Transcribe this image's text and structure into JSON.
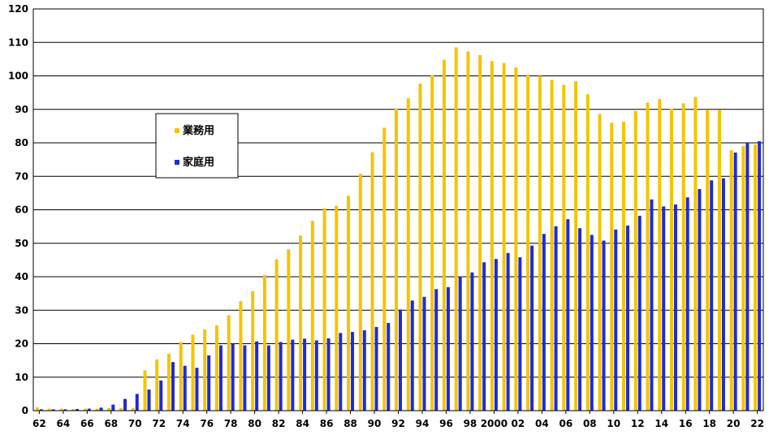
{
  "chart_data": {
    "type": "bar",
    "title": "",
    "xlabel": "",
    "ylabel": "",
    "ylim": [
      0,
      120
    ],
    "yticks": [
      0,
      10,
      20,
      30,
      40,
      50,
      60,
      70,
      80,
      90,
      100,
      110,
      120
    ],
    "grid": true,
    "legend_position": "left",
    "categories": [
      "62",
      "63",
      "64",
      "65",
      "66",
      "67",
      "68",
      "69",
      "70",
      "71",
      "72",
      "73",
      "74",
      "75",
      "76",
      "77",
      "78",
      "79",
      "80",
      "81",
      "82",
      "83",
      "84",
      "85",
      "86",
      "87",
      "88",
      "89",
      "90",
      "91",
      "92",
      "93",
      "94",
      "95",
      "96",
      "97",
      "98",
      "99",
      "2000",
      "01",
      "02",
      "03",
      "04",
      "05",
      "06",
      "07",
      "08",
      "09",
      "10",
      "11",
      "12",
      "13",
      "14",
      "15",
      "16",
      "17",
      "18",
      "19",
      "20",
      "21",
      "22"
    ],
    "xtick_labels": [
      "62",
      "64",
      "66",
      "68",
      "70",
      "72",
      "74",
      "76",
      "78",
      "80",
      "82",
      "84",
      "86",
      "88",
      "90",
      "92",
      "94",
      "96",
      "98",
      "2000",
      "02",
      "04",
      "06",
      "08",
      "10",
      "12",
      "14",
      "16",
      "18",
      "20",
      "22"
    ],
    "series": [
      {
        "name": "業務用",
        "color": "#F5C400",
        "values": [
          1.0,
          0.6,
          0.6,
          0.5,
          0.6,
          0.6,
          0.8,
          0.8,
          0.8,
          12.0,
          15.3,
          17.0,
          20.5,
          22.7,
          24.3,
          25.5,
          28.5,
          32.7,
          35.7,
          40.5,
          45.2,
          48.2,
          52.3,
          56.7,
          60.5,
          61.2,
          64.2,
          70.8,
          77.2,
          84.5,
          90.3,
          93.3,
          97.7,
          100.2,
          104.8,
          108.5,
          107.3,
          106.2,
          104.4,
          103.8,
          102.5,
          100.4,
          100.0,
          98.8,
          97.3,
          98.4,
          94.5,
          88.6,
          86.0,
          86.3,
          89.5,
          92.0,
          93.1,
          90.2,
          91.8,
          93.7,
          89.9,
          89.8,
          77.8,
          79.0,
          79.5
        ]
      },
      {
        "name": "家庭用",
        "color": "#1E2BD8",
        "values": [
          0.4,
          0.4,
          0.4,
          0.5,
          0.6,
          0.9,
          1.8,
          3.5,
          5.0,
          6.3,
          9.0,
          14.5,
          13.4,
          12.8,
          16.5,
          19.5,
          20.0,
          19.5,
          20.7,
          19.5,
          20.5,
          21.2,
          21.5,
          21.0,
          21.6,
          23.2,
          23.5,
          24.0,
          25.0,
          26.2,
          30.2,
          32.9,
          34.0,
          36.3,
          36.9,
          40.1,
          41.3,
          44.3,
          45.3,
          47.1,
          45.8,
          49.3,
          52.8,
          55.1,
          57.2,
          54.5,
          52.5,
          50.8,
          54.1,
          55.3,
          58.2,
          63.1,
          61.0,
          61.6,
          63.7,
          66.2,
          68.8,
          69.4,
          77.1,
          80.0,
          80.5
        ]
      }
    ]
  }
}
